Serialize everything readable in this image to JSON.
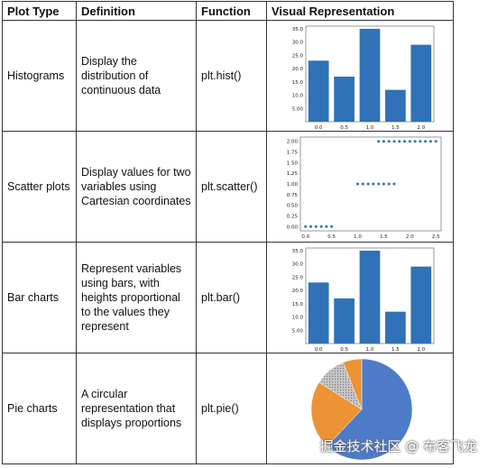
{
  "table": {
    "headers": [
      "Plot Type",
      "Definition",
      "Function",
      "Visual Representation"
    ],
    "rows": [
      {
        "type": "Histograms",
        "definition": "Display the distribution of continuous data",
        "function": "plt.hist()"
      },
      {
        "type": "Scatter plots",
        "definition": "Display values for two variables using Cartesian coordinates",
        "function": "plt.scatter()"
      },
      {
        "type": "Bar charts",
        "definition": "Represent variables using bars, with heights proportional to the values they represent",
        "function": "plt.bar()"
      },
      {
        "type": "Pie charts",
        "definition": "A circular representation that displays proportions",
        "function": "plt.pie()"
      }
    ]
  },
  "chart_data": [
    {
      "type": "bar",
      "categories": [
        "0.0",
        "0.5",
        "1.0",
        "1.5",
        "2.0"
      ],
      "values": [
        23,
        17,
        35,
        12,
        29
      ],
      "yticks": [
        5,
        10,
        15,
        20,
        25,
        30,
        35
      ],
      "ytick_labels": [
        "5.00",
        "10.0",
        "15.0",
        "20.0",
        "25.0",
        "30.0",
        "35.0"
      ],
      "ylim": [
        0,
        36
      ],
      "color": "#2f72b7"
    },
    {
      "type": "scatter",
      "x": [
        0.0,
        0.1,
        0.2,
        0.3,
        0.4,
        0.5,
        1.0,
        1.1,
        1.2,
        1.3,
        1.4,
        1.5,
        1.6,
        1.7,
        1.4,
        1.5,
        1.6,
        1.7,
        1.8,
        1.9,
        2.0,
        2.1,
        2.2,
        2.3,
        2.4,
        2.5
      ],
      "y": [
        0,
        0,
        0,
        0,
        0,
        0,
        1,
        1,
        1,
        1,
        1,
        1,
        1,
        1,
        2,
        2,
        2,
        2,
        2,
        2,
        2,
        2,
        2,
        2,
        2,
        2
      ],
      "xticks": [
        0.0,
        0.5,
        1.0,
        1.5,
        2.0,
        2.5
      ],
      "xtick_labels": [
        "0.0",
        "0.5",
        "1.0",
        "1.5",
        "2.0",
        "2.5"
      ],
      "yticks": [
        0,
        0.25,
        0.5,
        0.75,
        1.0,
        1.25,
        1.5,
        1.75,
        2.0
      ],
      "ytick_labels": [
        "0.00",
        "0.25",
        "0.50",
        "0.75",
        "1.00",
        "1.25",
        "1.50",
        "1.75",
        "2.00"
      ],
      "xlim": [
        -0.1,
        2.6
      ],
      "ylim": [
        -0.1,
        2.1
      ],
      "color": "#2f72b7"
    },
    {
      "type": "bar",
      "categories": [
        "0.0",
        "0.5",
        "1.0",
        "1.5",
        "2.0"
      ],
      "values": [
        23,
        17,
        35,
        12,
        29
      ],
      "yticks": [
        5,
        10,
        15,
        20,
        25,
        30,
        35
      ],
      "ytick_labels": [
        "5.00",
        "10.0",
        "15.0",
        "20.0",
        "25.0",
        "30.0",
        "35.0"
      ],
      "ylim": [
        0,
        36
      ],
      "color": "#2f72b7"
    },
    {
      "type": "pie",
      "values": [
        62,
        22,
        10,
        6
      ],
      "colors": [
        "#4e7bc8",
        "#ec9335",
        "#b0b0b0",
        "#ec9335"
      ],
      "hatched": [
        false,
        false,
        true,
        false
      ]
    }
  ],
  "watermark": "掘金技术社区 @ 布客飞龙"
}
